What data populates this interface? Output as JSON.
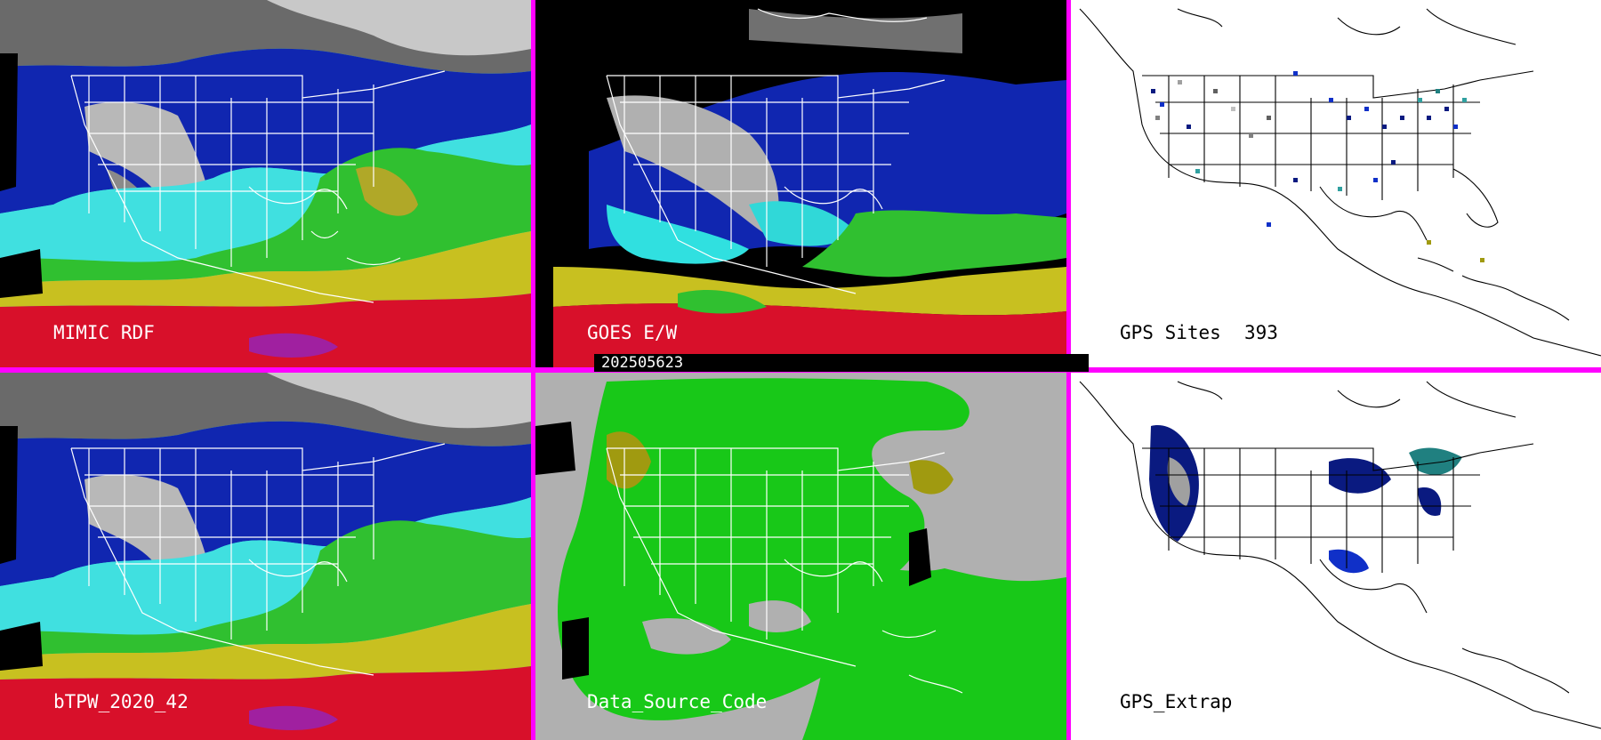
{
  "timestamp": "202505623",
  "panels": [
    {
      "id": "mimic",
      "label": "MIMIC RDF"
    },
    {
      "id": "goes",
      "label": "GOES E/W"
    },
    {
      "id": "gps_sites",
      "label": "GPS Sites",
      "count": "393"
    },
    {
      "id": "btpw",
      "label": "bTPW_2020_42"
    },
    {
      "id": "data_source",
      "label": "Data_Source_Code"
    },
    {
      "id": "gps_extrap",
      "label": "GPS_Extrap"
    }
  ],
  "colors": {
    "divider": "#ff00ff",
    "red": "#e0102a",
    "yellow": "#c8c818",
    "olive": "#a09a10",
    "green": "#20c020",
    "cyan": "#30e8e8",
    "blue": "#1030c8",
    "navy": "#0a1a80",
    "gray": "#a8a8a8",
    "source_green": "#18c818",
    "source_gray": "#b0b0b0",
    "source_olive": "#a09a10"
  }
}
